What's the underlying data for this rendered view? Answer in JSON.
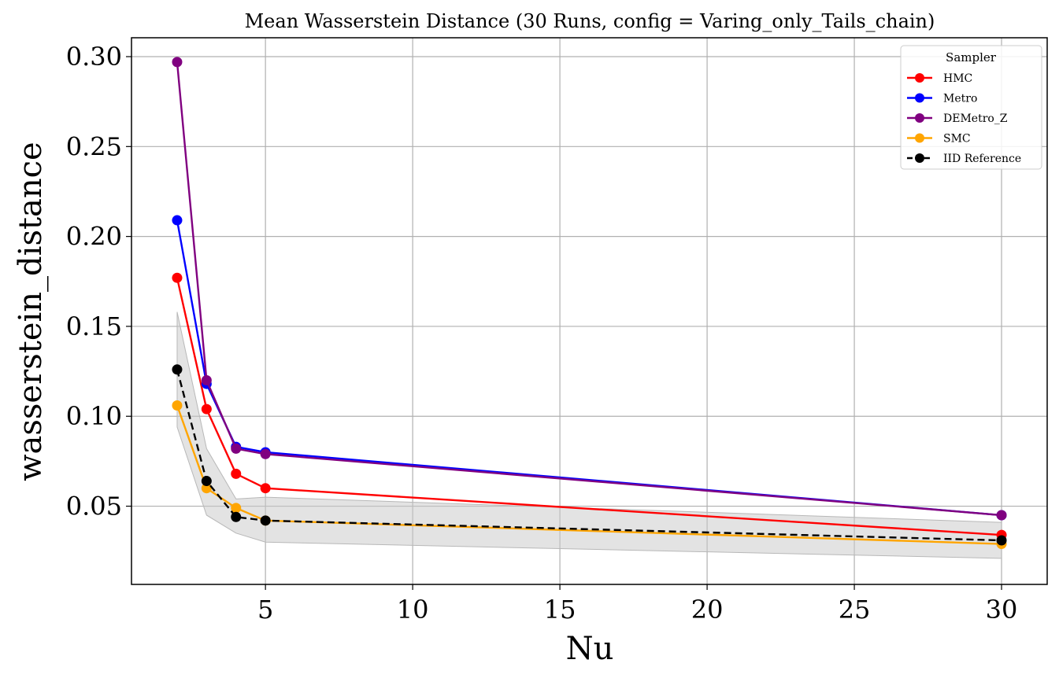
{
  "chart_data": {
    "type": "line",
    "title": "Mean Wasserstein Distance (30 Runs, config = Varing_only_Tails_chain)",
    "xlabel": "Nu",
    "ylabel": "wasserstein_distance",
    "xlim": [
      0.45,
      31.55
    ],
    "ylim": [
      0.0065,
      0.3105
    ],
    "xticks": [
      5,
      10,
      15,
      20,
      25,
      30
    ],
    "xtick_labels": [
      "5",
      "10",
      "15",
      "20",
      "25",
      "30"
    ],
    "yticks": [
      0.05,
      0.1,
      0.15,
      0.2,
      0.25,
      0.3
    ],
    "ytick_labels": [
      "0.05",
      "0.10",
      "0.15",
      "0.20",
      "0.25",
      "0.30"
    ],
    "grid": true,
    "x": [
      2,
      3,
      4,
      5,
      30
    ],
    "legend": {
      "title": "Sampler",
      "position": "upper-right"
    },
    "series": [
      {
        "name": "HMC",
        "color": "#ff0000",
        "style": "solid",
        "values": [
          0.177,
          0.104,
          0.068,
          0.06,
          0.034
        ]
      },
      {
        "name": "Metro",
        "color": "#0000ff",
        "style": "solid",
        "values": [
          0.209,
          0.118,
          0.083,
          0.08,
          0.045
        ]
      },
      {
        "name": "DEMetro_Z",
        "color": "#800080",
        "style": "solid",
        "values": [
          0.297,
          0.12,
          0.082,
          0.079,
          0.045
        ]
      },
      {
        "name": "SMC",
        "color": "#ffa500",
        "style": "solid",
        "values": [
          0.106,
          0.06,
          0.049,
          0.042,
          0.029
        ]
      },
      {
        "name": "IID Reference",
        "color": "#000000",
        "style": "dashed",
        "values": [
          0.126,
          0.064,
          0.044,
          0.042,
          0.031
        ]
      }
    ],
    "band": {
      "series": "IID Reference",
      "color": "#c8c8c8",
      "lower": [
        0.094,
        0.045,
        0.035,
        0.03,
        0.021
      ],
      "upper": [
        0.158,
        0.082,
        0.054,
        0.055,
        0.041
      ]
    }
  }
}
